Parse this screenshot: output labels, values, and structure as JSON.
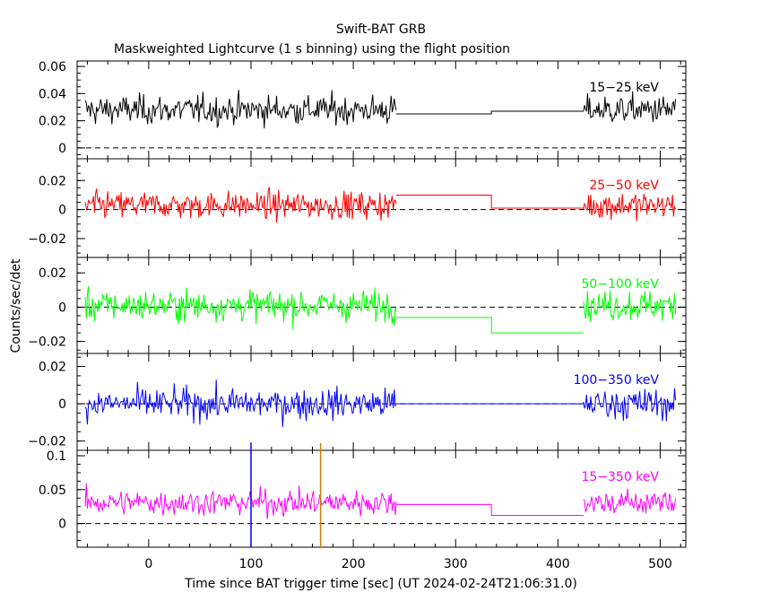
{
  "chart_data": {
    "type": "line",
    "title": "Swift-BAT GRB",
    "subtitle": "Maskweighted Lightcurve (1 s binning) using the flight position",
    "xlabel": "Time since BAT trigger time [sec] (UT 2024-02-24T21:06:31.0)",
    "ylabel": "Counts/sec/det",
    "xlim": [
      -70,
      525
    ],
    "x_ticks": [
      "0",
      "100",
      "200",
      "300",
      "400",
      "500"
    ],
    "data_gap": [
      242,
      425
    ],
    "markers": [
      {
        "name": "trigger-line",
        "x": 100,
        "color": "#0000ff"
      },
      {
        "name": "t90-end-line",
        "x": 168,
        "color": "#d08000"
      }
    ],
    "panels": [
      {
        "name": "15-25 keV",
        "label": "15−25 keV",
        "color": "#000000",
        "ylim": [
          -0.008,
          0.064
        ],
        "y_ticks": [
          {
            "v": 0,
            "t": "0"
          },
          {
            "v": 0.02,
            "t": "0.02"
          },
          {
            "v": 0.04,
            "t": "0.04"
          },
          {
            "v": 0.06,
            "t": "0.06"
          }
        ],
        "mean": 0.028,
        "noise": 0.009,
        "gap_levels": [
          0.025,
          0.027
        ]
      },
      {
        "name": "25-50 keV",
        "label": "25−50 keV",
        "color": "#ff0000",
        "ylim": [
          -0.033,
          0.035
        ],
        "y_ticks": [
          {
            "v": -0.02,
            "t": "−0.02"
          },
          {
            "v": 0,
            "t": "0"
          },
          {
            "v": 0.02,
            "t": "0.02"
          }
        ],
        "mean": 0.003,
        "noise": 0.008,
        "gap_levels": [
          0.01,
          0.001
        ]
      },
      {
        "name": "50-100 keV",
        "label": "50−100 keV",
        "color": "#00ff00",
        "ylim": [
          -0.027,
          0.029
        ],
        "y_ticks": [
          {
            "v": -0.02,
            "t": "−0.02"
          },
          {
            "v": 0,
            "t": "0"
          },
          {
            "v": 0.02,
            "t": "0.02"
          }
        ],
        "mean": 0.001,
        "noise": 0.0075,
        "gap_levels": [
          -0.006,
          -0.015
        ]
      },
      {
        "name": "100-350 keV",
        "label": "100−350 keV",
        "color": "#0000ff",
        "ylim": [
          -0.025,
          0.027
        ],
        "y_ticks": [
          {
            "v": -0.02,
            "t": "−0.02"
          },
          {
            "v": 0,
            "t": "0"
          },
          {
            "v": 0.02,
            "t": "0.02"
          }
        ],
        "mean": 0.0,
        "noise": 0.007,
        "gap_levels": [
          0.0,
          0.0
        ]
      },
      {
        "name": "15-350 keV",
        "label": "15−350 keV",
        "color": "#ff00ff",
        "ylim": [
          -0.035,
          0.108
        ],
        "y_ticks": [
          {
            "v": 0,
            "t": "0"
          },
          {
            "v": 0.05,
            "t": "0.05"
          },
          {
            "v": 0.1,
            "t": "0.1"
          }
        ],
        "mean": 0.031,
        "noise": 0.016,
        "gap_levels": [
          0.028,
          0.012
        ]
      }
    ]
  }
}
